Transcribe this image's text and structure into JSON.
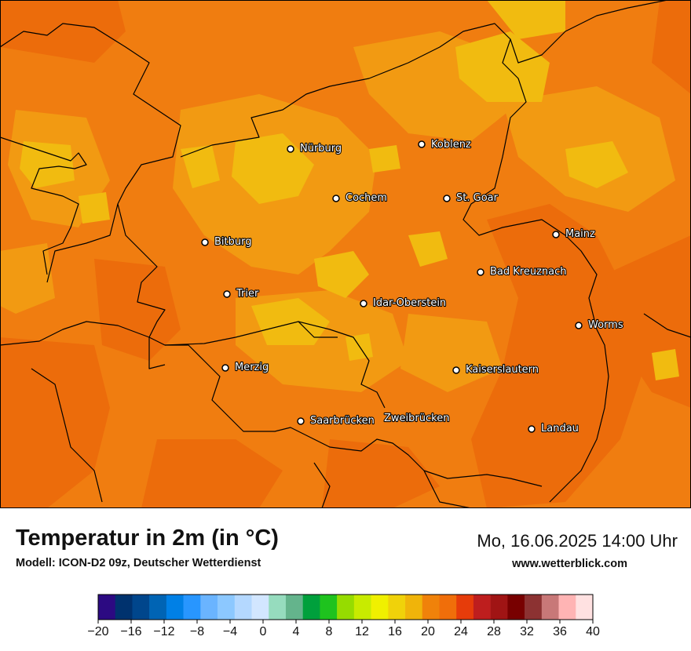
{
  "title": "Temperatur in 2m (in °C)",
  "model": "Modell: ICON-D2 09z, Deutscher Wetterdienst",
  "datetime": "Mo, 16.06.2025 14:00 Uhr",
  "website": "www.wetterblick.com",
  "colors": {
    "base": "#f07d10",
    "warm_light": "#f29a12",
    "yellow": "#f1bb10",
    "hot": "#ec6c0b",
    "border": "#000000",
    "marker": "#ffffff"
  },
  "cities": [
    {
      "id": "nuerburg",
      "name": "Nürburg"
    },
    {
      "id": "koblenz",
      "name": "Koblenz"
    },
    {
      "id": "cochem",
      "name": "Cochem"
    },
    {
      "id": "stgoar",
      "name": "St. Goar"
    },
    {
      "id": "mainz",
      "name": "Mainz"
    },
    {
      "id": "bitburg",
      "name": "Bitburg"
    },
    {
      "id": "badkreuznach",
      "name": "Bad Kreuznach"
    },
    {
      "id": "trier",
      "name": "Trier"
    },
    {
      "id": "idaroberstein",
      "name": "Idar-Oberstein"
    },
    {
      "id": "worms",
      "name": "Worms"
    },
    {
      "id": "merzig",
      "name": "Merzig"
    },
    {
      "id": "kaiserslautern",
      "name": "Kaiserslautern"
    },
    {
      "id": "saarbruecken",
      "name": "Saarbrücken"
    },
    {
      "id": "zweibruecken",
      "name": "Zweibrücken"
    },
    {
      "id": "landau",
      "name": "Landau"
    }
  ],
  "legend": {
    "colors": [
      "#2c0a82",
      "#00326e",
      "#00468c",
      "#0064b4",
      "#0080e6",
      "#2896ff",
      "#6ab4ff",
      "#8cc8ff",
      "#b4d8ff",
      "#d2e6ff",
      "#96dcbe",
      "#64b48c",
      "#00a03c",
      "#1ec31e",
      "#96dc00",
      "#c8eb00",
      "#f0f000",
      "#f0d20a",
      "#f0b40a",
      "#f0820a",
      "#f06e0a",
      "#e63c0a",
      "#be1e1e",
      "#a01414",
      "#780000",
      "#8c3232",
      "#c87878",
      "#ffb4b4",
      "#ffe1e1"
    ],
    "ticks": [
      "−20",
      "−16",
      "−12",
      "−8",
      "−4",
      "0",
      "4",
      "8",
      "12",
      "16",
      "20",
      "24",
      "28",
      "32",
      "36",
      "40"
    ]
  }
}
